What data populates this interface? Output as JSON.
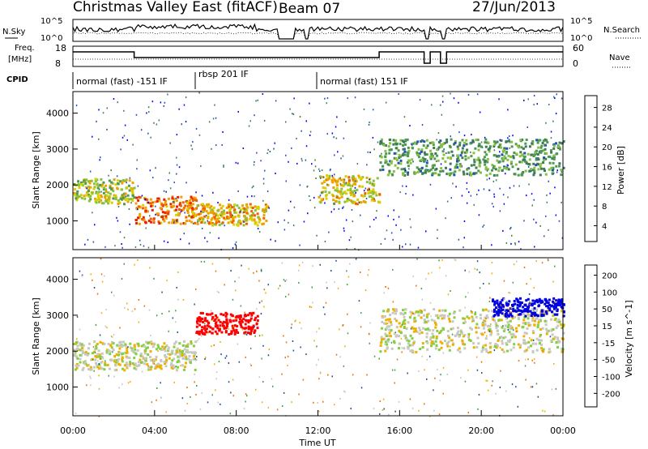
{
  "header": {
    "station": "Christmas Valley East (fitACF)",
    "beam": "Beam 07",
    "date": "27/Jun/2013"
  },
  "strips": {
    "nsky_label": "N.Sky",
    "nsky_ticks": [
      "10^5",
      "10^0"
    ],
    "nsearch_label": "N.Search",
    "nsearch_ticks": [
      "10^5",
      "10^0"
    ],
    "freq_label_1": "Freq.",
    "freq_label_2": "[MHz]",
    "freq_ticks": [
      "18",
      "8"
    ],
    "nave_label": "Nave",
    "nave_ticks": [
      "60",
      "0"
    ],
    "cpid_label": "CPID",
    "cpid_segments": [
      "normal (fast) -151 IF",
      "rbsp 201 IF",
      "normal (fast) 151 IF"
    ]
  },
  "chart_data": [
    {
      "type": "heatmap",
      "title": "",
      "xlabel": "",
      "ylabel": "Slant Range [km]",
      "x_range_hours": [
        0,
        24
      ],
      "ylim": [
        200,
        4600
      ],
      "y_ticks": [
        "4000",
        "3000",
        "2000",
        "1000"
      ],
      "colorbar": {
        "label": "Power [dB]",
        "ticks": [
          "28",
          "24",
          "20",
          "16",
          "12",
          "8",
          "4"
        ],
        "colors": [
          "#0000ff",
          "#2050b8",
          "#3c7a5a",
          "#4c9a50",
          "#88c040",
          "#d8d000",
          "#f0a000",
          "#f06000",
          "#e82000",
          "#ff0000"
        ]
      },
      "echo_bands": [
        {
          "t": [
            0,
            3
          ],
          "range": [
            1500,
            2200
          ],
          "dB": 16
        },
        {
          "t": [
            3,
            6
          ],
          "range": [
            950,
            1700
          ],
          "dB": 24
        },
        {
          "t": [
            6,
            9.5
          ],
          "range": [
            900,
            1500
          ],
          "dB": 20
        },
        {
          "t": [
            12,
            15
          ],
          "range": [
            1500,
            2300
          ],
          "dB": 18
        },
        {
          "t": [
            15,
            24
          ],
          "range": [
            2300,
            3300
          ],
          "dB": 10
        }
      ]
    },
    {
      "type": "heatmap",
      "title": "",
      "xlabel": "Time UT",
      "ylabel": "Slant Range [km]",
      "x_range_hours": [
        0,
        24
      ],
      "ylim": [
        200,
        4600
      ],
      "y_ticks": [
        "4000",
        "3000",
        "2000",
        "1000"
      ],
      "x_ticks": [
        "00:00",
        "04:00",
        "08:00",
        "12:00",
        "16:00",
        "20:00",
        "00:00"
      ],
      "colorbar": {
        "label": "Velocity [m s^-1]",
        "ticks": [
          "200",
          "100",
          "50",
          "15",
          "-15",
          "-50",
          "-100",
          "-200"
        ],
        "colors": [
          "#0000e0",
          "#205090",
          "#40a040",
          "#80d040",
          "#c8c8c0",
          "#f0b000",
          "#f07000",
          "#ff0000"
        ]
      },
      "echo_bands": [
        {
          "t": [
            0,
            6
          ],
          "range": [
            1500,
            2300
          ],
          "v": 0
        },
        {
          "t": [
            6,
            9
          ],
          "range": [
            2500,
            3100
          ],
          "v": -150
        },
        {
          "t": [
            15,
            24
          ],
          "range": [
            2000,
            3200
          ],
          "v": 0
        },
        {
          "t": [
            20.5,
            24
          ],
          "range": [
            3000,
            3500
          ],
          "v": 200
        }
      ]
    }
  ]
}
